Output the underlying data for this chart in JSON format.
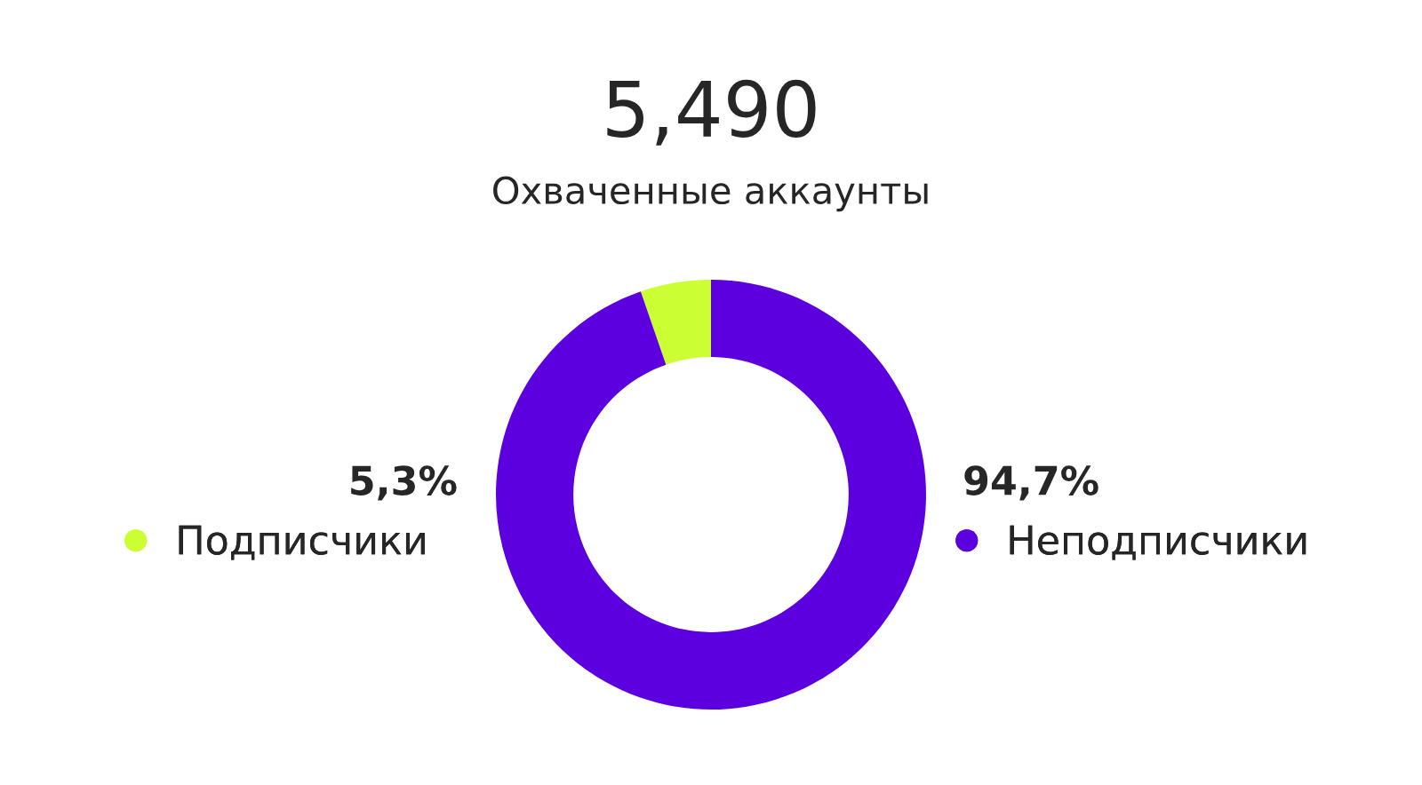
{
  "chart_data": {
    "type": "donut",
    "title": "5,490",
    "subtitle": "Охваченные аккаунты",
    "categories": [
      "Подписчики",
      "Неподписчики"
    ],
    "values": [
      5.3,
      94.7
    ],
    "colors": [
      "#ccff33",
      "#5c00e0"
    ],
    "value_labels": [
      "5,3%",
      "94,7%"
    ],
    "legend": "left"
  }
}
